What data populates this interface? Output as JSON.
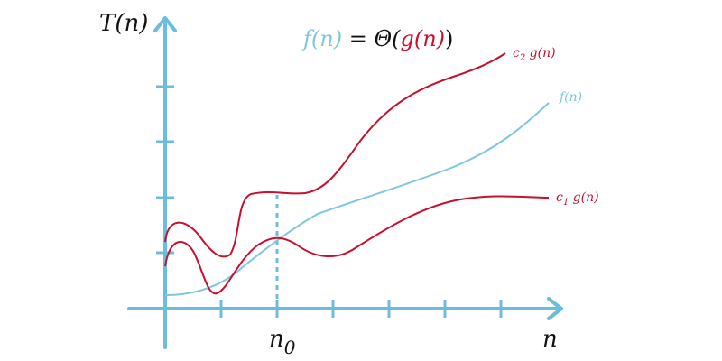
{
  "diagram": {
    "y_axis_label": "T(n)",
    "x_axis_label": "n",
    "threshold_label": "n",
    "threshold_subscript": "0",
    "title": {
      "f_part": "f(n)",
      "equals": " = ",
      "theta_open": "Θ(",
      "g_part": "g(n)",
      "close": ")"
    },
    "curve_labels": {
      "upper": {
        "coef": "c",
        "sub": "2",
        "fn": " g(n)"
      },
      "middle": "f(n)",
      "lower": {
        "coef": "c",
        "sub": "1",
        "fn": " g(n)"
      }
    },
    "colors": {
      "axis": "#6cbcdd",
      "f_curve": "#7ec6e2",
      "g_curves": "#c8102e",
      "text": "#111111"
    }
  }
}
